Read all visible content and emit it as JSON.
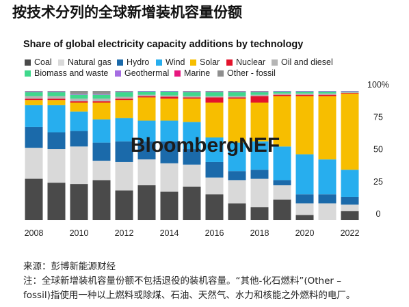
{
  "title_cn": "按技术分列的全球新增装机容量份额",
  "watermark": "BloombergNEF",
  "chart_data": {
    "type": "bar",
    "stacked": true,
    "normalized_percent": true,
    "title": "Share of global electricity capacity additions by technology",
    "xlabel": "",
    "ylabel": "",
    "x": [
      2008,
      2009,
      2010,
      2011,
      2012,
      2013,
      2014,
      2015,
      2016,
      2017,
      2018,
      2019,
      2020,
      2021,
      2022
    ],
    "xtick_values": [
      2008,
      2010,
      2012,
      2014,
      2016,
      2018,
      2020,
      2022
    ],
    "xtick_labels": [
      "2008",
      "2010",
      "2012",
      "2014",
      "2016",
      "2018",
      "2020",
      "2022"
    ],
    "ytick_values": [
      100,
      75,
      50,
      25,
      0
    ],
    "ytick_labels": [
      "100%",
      "75",
      "50",
      "25",
      "0"
    ],
    "ylim": [
      0,
      100
    ],
    "y_axis_side": "right",
    "grid": false,
    "legend_position": "top-left",
    "series": [
      {
        "name": "Coal",
        "color": "#4a4a4a",
        "values": [
          32,
          29,
          28,
          31,
          23,
          27,
          22,
          26,
          20,
          13,
          10,
          16,
          4,
          0,
          7
        ]
      },
      {
        "name": "Natural gas",
        "color": "#d9d9d9",
        "values": [
          24,
          26,
          29,
          15,
          22,
          20,
          22,
          17,
          13,
          18,
          22,
          11,
          9,
          13,
          5
        ]
      },
      {
        "name": "Hydro",
        "color": "#1b6aaa",
        "values": [
          16,
          13,
          12,
          14,
          16,
          14,
          17,
          12,
          12,
          7,
          7,
          4,
          7,
          7,
          6
        ]
      },
      {
        "name": "Wind",
        "color": "#27aeee",
        "values": [
          17,
          21,
          15,
          18,
          18,
          16,
          16,
          21,
          19,
          22,
          22,
          26,
          31,
          27,
          21
        ]
      },
      {
        "name": "Solar",
        "color": "#f7be00",
        "values": [
          4,
          4,
          7,
          13,
          14,
          18,
          17,
          18,
          27,
          34,
          30,
          39,
          45,
          49,
          59
        ]
      },
      {
        "name": "Nuclear",
        "color": "#e3132c",
        "values": [
          1,
          1,
          1,
          1,
          1,
          1,
          1.5,
          1,
          4,
          1,
          5,
          1,
          1,
          1,
          0.5
        ]
      },
      {
        "name": "Oil and diesel",
        "color": "#b5b5b5",
        "values": [
          2,
          2,
          2,
          2,
          1.5,
          1,
          1,
          1,
          1,
          1,
          1,
          1,
          1,
          1,
          0.5
        ]
      },
      {
        "name": "Biomass and waste",
        "color": "#3fd88c",
        "values": [
          3,
          3,
          3,
          3,
          3.5,
          2.5,
          3,
          3,
          3,
          3,
          2,
          1.5,
          1.5,
          1.5,
          0.5
        ]
      },
      {
        "name": "Geothermal",
        "color": "#a56de2",
        "values": [
          0.5,
          0.5,
          0.5,
          0.5,
          0.5,
          0.5,
          0.5,
          0.5,
          0.5,
          0.5,
          0.5,
          0.5,
          0.5,
          0.5,
          0.5
        ]
      },
      {
        "name": "Marine",
        "color": "#e8177f",
        "values": [
          0,
          0,
          0,
          0,
          0,
          0,
          0,
          0,
          0,
          0,
          0,
          0,
          0,
          0,
          0
        ]
      },
      {
        "name": "Other - fossil",
        "color": "#8f8f8f",
        "values": [
          0.5,
          0.5,
          2.5,
          2.5,
          0.5,
          0,
          0,
          0.5,
          0.5,
          0.5,
          0.5,
          0,
          0,
          0,
          0
        ]
      }
    ]
  },
  "footer": {
    "source": "来源：彭博新能源财经",
    "note_lines": [
      "注：全球新增装机容量份额不包括退役的装机容量。“其他-化石燃料”(Other –",
      "fossil)指使用一种以上燃料或除煤、石油、天然气、水力和核能之外燃料的电厂。"
    ]
  }
}
